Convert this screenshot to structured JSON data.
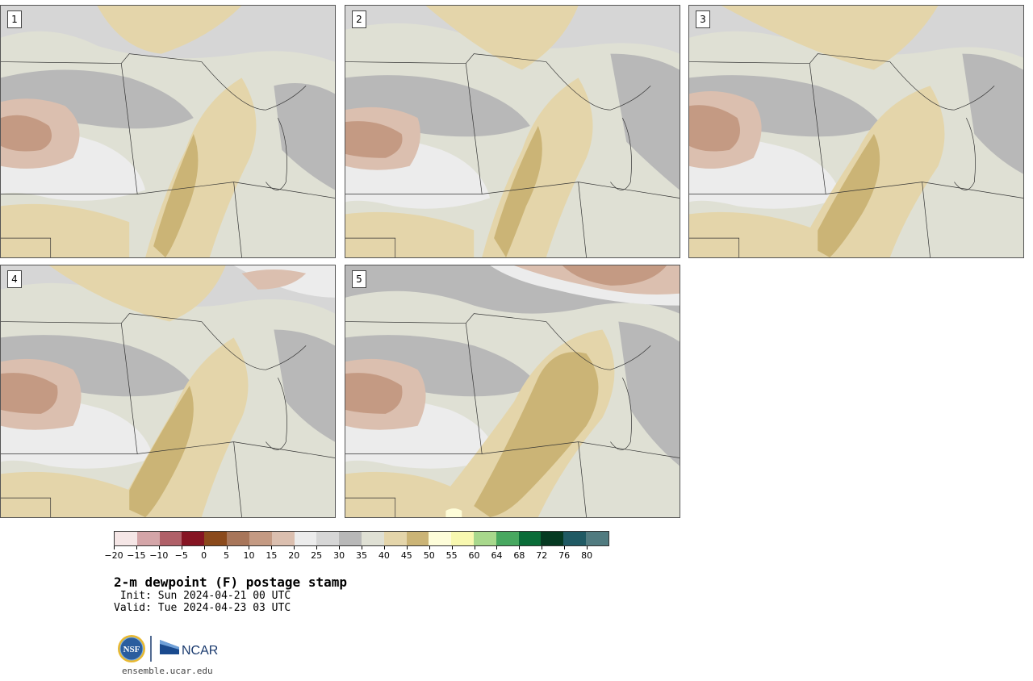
{
  "figure": {
    "title": "2-m dewpoint (F) postage stamp",
    "init_label": "Init:",
    "init_time": "Sun 2024-04-21 00 UTC",
    "valid_label": "Valid:",
    "valid_time": "Tue 2024-04-23 03 UTC"
  },
  "panels": [
    {
      "label": "1"
    },
    {
      "label": "2"
    },
    {
      "label": "3"
    },
    {
      "label": "4"
    },
    {
      "label": "5"
    }
  ],
  "colorbar": {
    "unit": "F",
    "tick_labels": [
      "−20",
      "−15",
      "−10",
      "−5",
      "0",
      "5",
      "10",
      "15",
      "20",
      "25",
      "30",
      "35",
      "40",
      "45",
      "50",
      "55",
      "60",
      "64",
      "68",
      "72",
      "76",
      "80"
    ],
    "colors": [
      "#f5e6e6",
      "#d4a5a8",
      "#b06068",
      "#861523",
      "#8b4a1c",
      "#a8765a",
      "#c49a83",
      "#dbbfaf",
      "#ececec",
      "#d6d6d6",
      "#b8b8b8",
      "#dfe0d4",
      "#e4d5aa",
      "#cbb476",
      "#fefdd9",
      "#f8f8b0",
      "#a8d88c",
      "#48a860",
      "#0a6c38",
      "#063a22",
      "#205a64",
      "#517b80"
    ]
  },
  "logos": {
    "nsf_text": "NSF",
    "ncar_text": "NCAR",
    "url": "ensemble.ucar.edu"
  }
}
